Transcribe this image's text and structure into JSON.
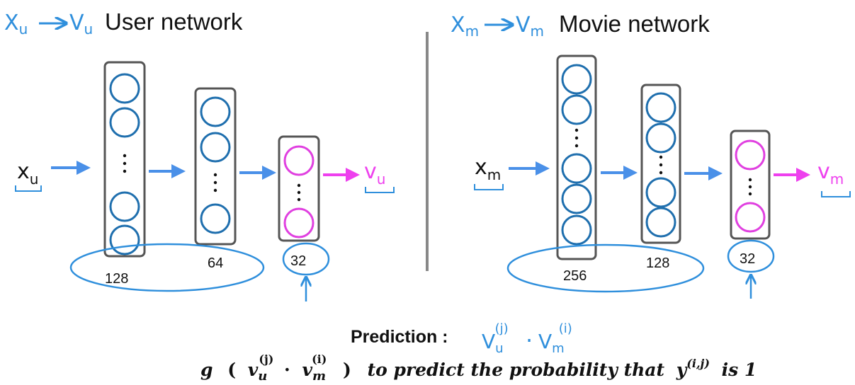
{
  "colors": {
    "neuron": "#1f6fae",
    "output_neuron": "#e040e0",
    "arrow": "#4a90e8",
    "output_arrow": "#ee40ee",
    "annotation": "#2f8fdc",
    "box": "#555555",
    "divider": "#888888"
  },
  "user": {
    "annotation_from": "X",
    "annotation_from_sub": "u",
    "annotation_to": "V",
    "annotation_to_sub": "u",
    "title": "User network",
    "input": "x",
    "input_sub": "u",
    "output": "v",
    "output_sub": "u",
    "layers": [
      "128",
      "64",
      "32"
    ]
  },
  "movie": {
    "annotation_from": "X",
    "annotation_from_sub": "m",
    "annotation_to": "V",
    "annotation_to_sub": "m",
    "title": "Movie network",
    "input": "x",
    "input_sub": "m",
    "output": "v",
    "output_sub": "m",
    "layers": [
      "256",
      "128",
      "32"
    ]
  },
  "prediction": {
    "label": "Prediction :",
    "hand_v": "V",
    "hand_v_sub": "u",
    "hand_v_sup": "(j)",
    "hand_dot": "·",
    "hand_m": "V",
    "hand_m_sub": "m",
    "hand_m_sup": "(i)"
  },
  "formula": {
    "g": "g",
    "open_paren": "(",
    "v": "v",
    "v_sub": "u",
    "v_sup": "(j)",
    "dot": "·",
    "m": "v",
    "m_sub": "m",
    "m_sup": "(i)",
    "close_paren": ")",
    "text": "to predict  the probability that",
    "y": "y",
    "y_sup": "(i,j)",
    "tail": "is 1"
  }
}
